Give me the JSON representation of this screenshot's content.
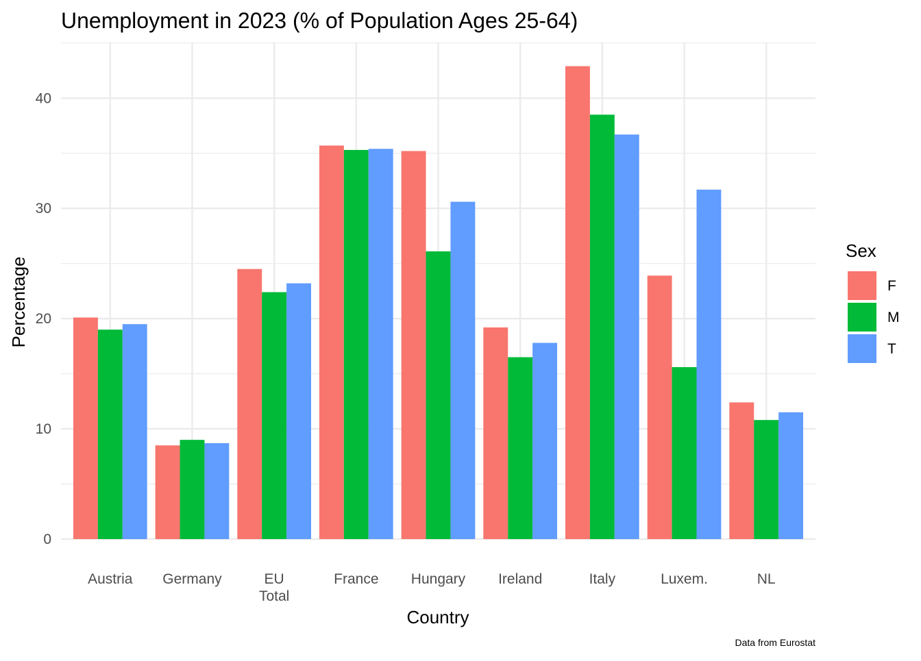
{
  "chart_data": {
    "type": "bar",
    "title": "Unemployment in 2023 (% of Population Ages 25-64)",
    "xlabel": "Country",
    "ylabel": "Percentage",
    "caption": "Data from Eurostat",
    "categories": [
      [
        "Austria"
      ],
      [
        "Germany"
      ],
      [
        "EU",
        "Total"
      ],
      [
        "France"
      ],
      [
        "Hungary"
      ],
      [
        "Ireland"
      ],
      [
        "Italy"
      ],
      [
        "Luxem."
      ],
      [
        "NL"
      ]
    ],
    "legend_title": "Sex",
    "legend_position": "right",
    "grid": true,
    "ylim": [
      0,
      45
    ],
    "yticks": [
      0,
      10,
      20,
      30,
      40
    ],
    "series": [
      {
        "name": "F",
        "color": "#F8766D",
        "values": [
          20.1,
          8.5,
          24.5,
          35.7,
          35.2,
          19.2,
          42.9,
          23.9,
          12.4
        ]
      },
      {
        "name": "M",
        "color": "#00BA38",
        "values": [
          19.0,
          9.0,
          22.4,
          35.3,
          26.1,
          16.5,
          38.5,
          15.6,
          10.8
        ]
      },
      {
        "name": "T",
        "color": "#619CFF",
        "values": [
          19.5,
          8.7,
          23.2,
          35.4,
          30.6,
          17.8,
          36.7,
          31.7,
          11.5
        ]
      }
    ]
  }
}
